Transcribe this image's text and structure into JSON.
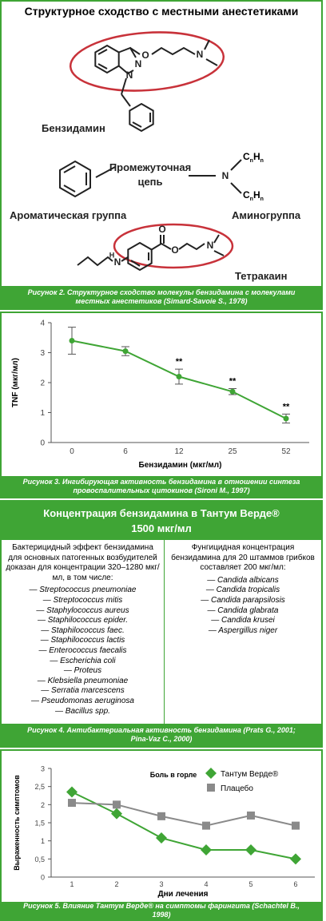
{
  "structure_figure": {
    "title": "Структурное сходство с местными анестетиками",
    "benzydamine": {
      "label": "Бензидамин",
      "atoms": [
        "O",
        "N",
        "N",
        "N"
      ]
    },
    "chain_label": [
      "Промежуточная",
      "цепь"
    ],
    "aromatic_label": "Ароматическая группа",
    "amino_label": "Аминогруппа",
    "amino_atoms": [
      "N",
      "C",
      "n",
      "H",
      "n"
    ],
    "tetracaine": {
      "label": "Тетракаин",
      "atoms": [
        "N",
        "H",
        "O",
        "O",
        "N"
      ]
    },
    "caption": "Рисунок 2. Структурное сходство молекулы бензидамина с молекулами местных анестетиков (Simard-Savoie S., 1978)"
  },
  "chart_data": [
    {
      "type": "line",
      "xlabel": "Бензидамин (мкг/мл)",
      "ylabel": "TNF (мкг/мл)",
      "categories": [
        "0",
        "6",
        "12",
        "25",
        "52"
      ],
      "values": [
        3.4,
        3.05,
        2.2,
        1.7,
        0.8
      ],
      "errors": [
        0.45,
        0.15,
        0.25,
        0.1,
        0.15
      ],
      "value_annotations": [
        null,
        null,
        "**",
        "**",
        "**"
      ],
      "color": "#3fa535",
      "marker": "circle",
      "ylim": [
        0,
        4
      ],
      "yticks": [
        0,
        1,
        2,
        3,
        4
      ],
      "grid": false,
      "caption": "Рисунок 3. Ингибирующая активность бензидамина в отношении синтеза провоспалительных цитокинов (Sironi M., 1997)"
    },
    {
      "type": "line",
      "xlabel": "Дни лечения",
      "ylabel": "Выраженность симптомов",
      "annotation": "Боль в горле",
      "categories": [
        "1",
        "2",
        "3",
        "4",
        "5",
        "6"
      ],
      "series": [
        {
          "name": "Тантум Верде®",
          "color": "#3fa535",
          "marker": "diamond",
          "values": [
            2.35,
            1.75,
            1.08,
            0.75,
            0.75,
            0.5
          ]
        },
        {
          "name": "Плацебо",
          "color": "#8a8a8a",
          "marker": "square",
          "values": [
            2.05,
            2.0,
            1.68,
            1.42,
            1.7,
            1.42
          ]
        }
      ],
      "ylim": [
        0,
        3
      ],
      "yticks": [
        0,
        {
          "value": 0.5,
          "label": "0,5"
        },
        1,
        {
          "value": 1.5,
          "label": "1,5"
        },
        2,
        {
          "value": 2.5,
          "label": "2,5"
        },
        3
      ],
      "grid": false,
      "legend": "upper right",
      "caption": "Рисунок 5. Влияние Тантум Верде® на симптомы фарингита (Schachtel B., 1998)"
    }
  ],
  "table_figure": {
    "title": [
      "Концентрация бензидамина в Тантум Верде®",
      "1500 мкг/мл"
    ],
    "left_header": "Бактерицидный эффект бензидамина для основных патогенных возбудителей доказан для концентрации 320–1280 мкг/мл, в том числе:",
    "left_items": [
      "— Streptococcus pneumoniae",
      "— Streptococcus mitis",
      "— Staphylococcus aureus",
      "— Staphilococcus epider.",
      "— Staphilococcus faec.",
      "— Staphilococcus lactis",
      "— Enterococcus faecalis",
      "— Escherichia coli",
      "— Proteus",
      "— Klebsiella pneumoniae",
      "— Serratia marcescens",
      "— Pseudomonas aeruginosa",
      "— Bacillus spp."
    ],
    "right_header": "Фунгицидная концентрация бензидамина для 20 штаммов грибков составляет 200 мкг/мл:",
    "right_items": [
      "— Candida albicans",
      "— Candida tropicalis",
      "— Candida parapsilosis",
      "— Candida glabrata",
      "— Candida krusei",
      "— Aspergillus niger"
    ],
    "caption": "Рисунок 4. Антибактериальная активность бензидамина (Prats G., 2001; Pina-Vaz C., 2000)"
  }
}
